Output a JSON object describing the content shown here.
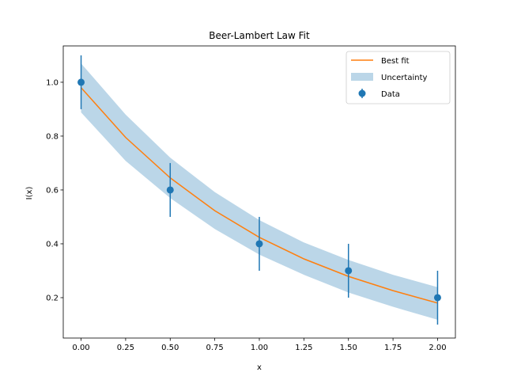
{
  "chart_data": {
    "type": "line",
    "title": "Beer-Lambert Law Fit",
    "xlabel": "x",
    "ylabel": "I(x)",
    "xlim": [
      -0.1,
      2.1
    ],
    "ylim": [
      0.05,
      1.135
    ],
    "xticks": [
      0.0,
      0.25,
      0.5,
      0.75,
      1.0,
      1.25,
      1.5,
      1.75,
      2.0
    ],
    "xtick_labels": [
      "0.00",
      "0.25",
      "0.50",
      "0.75",
      "1.00",
      "1.25",
      "1.50",
      "1.75",
      "2.00"
    ],
    "yticks": [
      0.2,
      0.4,
      0.6,
      0.8,
      1.0
    ],
    "ytick_labels": [
      "0.2",
      "0.4",
      "0.6",
      "0.8",
      "1.0"
    ],
    "grid": false,
    "legend_position": "top-right",
    "colors": {
      "data": "#1f77b4",
      "fit": "#ff7f0e",
      "band": "#1f77b4"
    },
    "series": [
      {
        "name": "Data",
        "type": "errorbar",
        "x": [
          0.0,
          0.5,
          1.0,
          1.5,
          2.0
        ],
        "y": [
          1.0,
          0.6,
          0.4,
          0.3,
          0.2
        ],
        "yerr": [
          0.1,
          0.1,
          0.1,
          0.1,
          0.1
        ]
      },
      {
        "name": "Best fit",
        "type": "line",
        "x": [
          0.0,
          0.25,
          0.5,
          0.75,
          1.0,
          1.25,
          1.5,
          1.75,
          2.0
        ],
        "y": [
          0.98,
          0.795,
          0.645,
          0.523,
          0.424,
          0.344,
          0.279,
          0.226,
          0.18
        ]
      },
      {
        "name": "Uncertainty",
        "type": "band",
        "x": [
          0.0,
          0.25,
          0.5,
          0.75,
          1.0,
          1.25,
          1.5,
          1.75,
          2.0
        ],
        "y_lower": [
          0.888,
          0.708,
          0.57,
          0.455,
          0.36,
          0.285,
          0.219,
          0.166,
          0.118
        ],
        "y_upper": [
          1.07,
          0.88,
          0.72,
          0.592,
          0.488,
          0.405,
          0.34,
          0.285,
          0.239
        ]
      }
    ],
    "legend": [
      "Best fit",
      "Uncertainty",
      "Data"
    ]
  }
}
